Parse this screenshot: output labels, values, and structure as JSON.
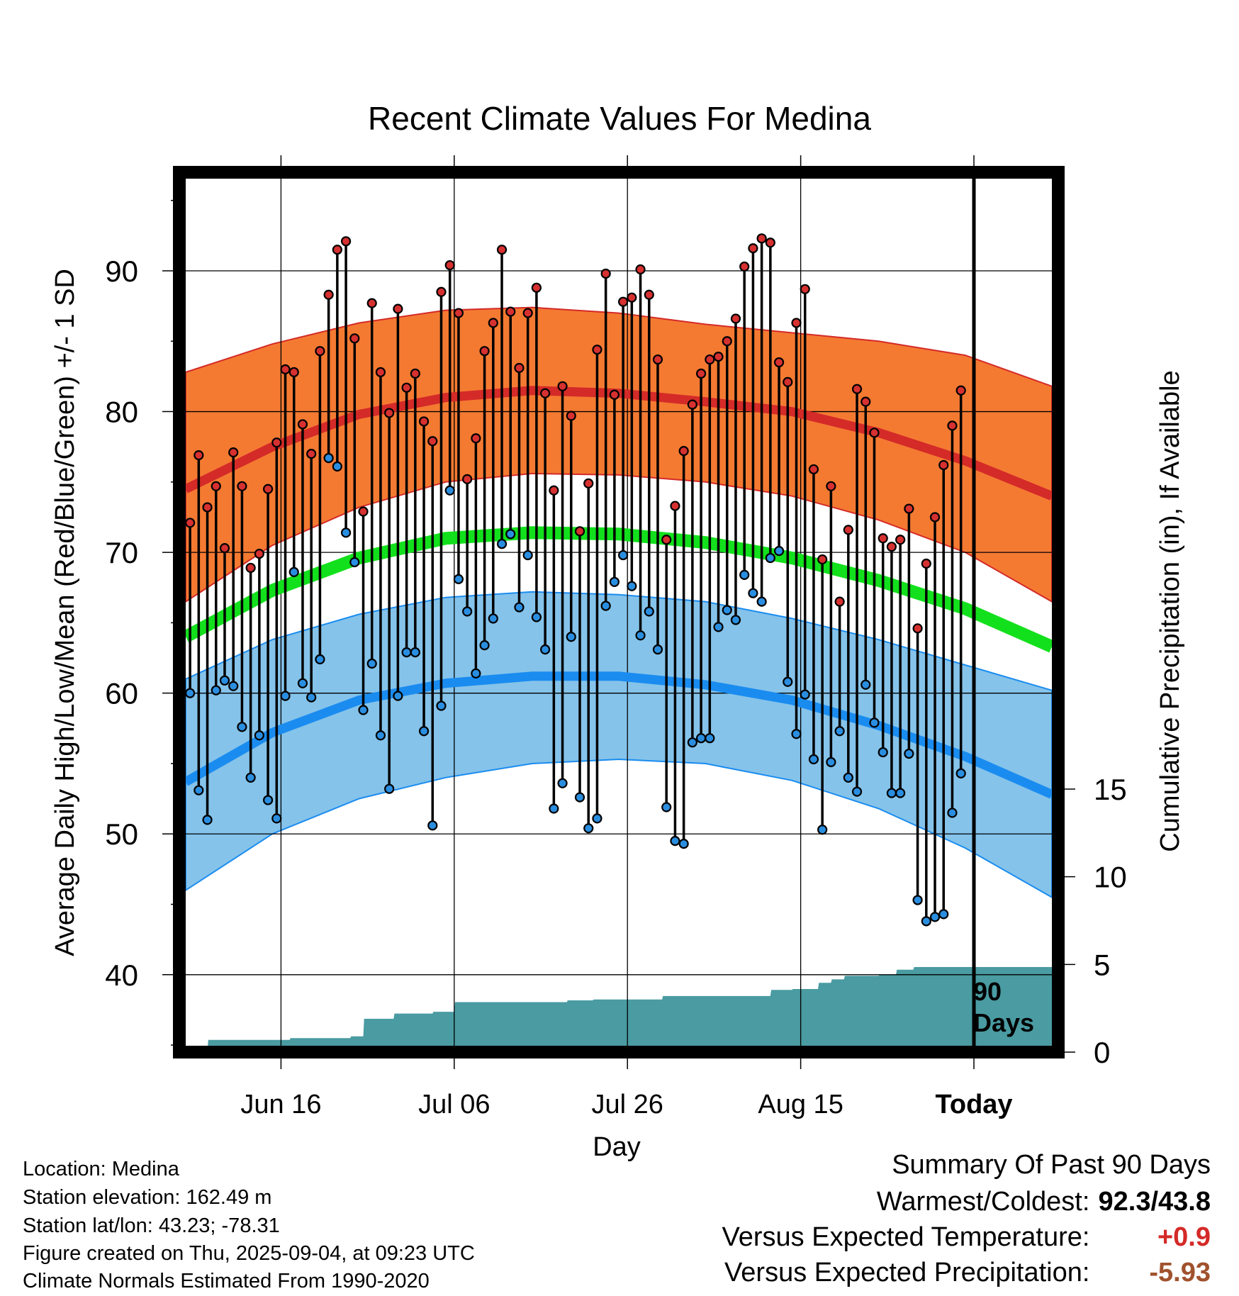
{
  "chart_data": {
    "type": "line",
    "title": "Recent Climate Values For Medina",
    "xlabel": "Day",
    "ylabel": "Average Daily High/Low/Mean (Red/Blue/Green) +/- 1 SD",
    "y2label": "Cumulative Precipitation (in), If Available",
    "ylim": [
      34.5,
      97
    ],
    "y2lim": [
      0,
      32
    ],
    "yticks": [
      "40",
      "50",
      "60",
      "70",
      "80",
      "90"
    ],
    "y2ticks": [
      "0",
      "5",
      "10",
      "15"
    ],
    "x_tick_labels": [
      "Jun 16",
      "Jul 06",
      "Jul 26",
      "Aug 15",
      "Today"
    ],
    "x_tick_days": [
      11,
      31,
      51,
      71,
      91
    ],
    "xlim": [
      0,
      100
    ],
    "period_label_line1": "90",
    "period_label_line2": "Days",
    "grid": true,
    "normals": {
      "days": [
        0,
        10,
        20,
        30,
        40,
        50,
        60,
        70,
        80,
        90,
        100
      ],
      "high_mean": [
        74.5,
        77.5,
        79.8,
        81.0,
        81.5,
        81.3,
        80.7,
        80.0,
        78.5,
        76.5,
        74.0
      ],
      "high_upper": [
        82.8,
        84.8,
        86.3,
        87.2,
        87.4,
        87.0,
        86.2,
        85.6,
        85.0,
        84.0,
        81.8
      ],
      "high_lower": [
        66.5,
        70.5,
        73.2,
        75.0,
        75.6,
        75.5,
        75.0,
        74.0,
        72.3,
        70.0,
        66.5
      ],
      "mean": [
        64.0,
        67.3,
        69.6,
        71.0,
        71.4,
        71.3,
        70.7,
        69.6,
        68.0,
        66.0,
        63.3
      ],
      "low_mean": [
        53.7,
        57.2,
        59.5,
        60.7,
        61.2,
        61.2,
        60.6,
        59.5,
        57.7,
        55.5,
        52.8
      ],
      "low_upper": [
        61.0,
        63.8,
        65.6,
        66.8,
        67.2,
        67.0,
        66.5,
        65.3,
        63.8,
        62.0,
        60.2
      ],
      "low_lower": [
        46.0,
        50.0,
        52.5,
        54.0,
        55.0,
        55.3,
        55.0,
        53.8,
        51.8,
        49.0,
        45.5
      ]
    },
    "daily": {
      "days": [
        0.5,
        1.5,
        2.5,
        3.5,
        4.5,
        5.5,
        6.5,
        7.5,
        8.5,
        9.5,
        10.5,
        11.5,
        12.5,
        13.5,
        14.5,
        15.5,
        16.5,
        17.5,
        18.5,
        19.5,
        20.5,
        21.5,
        22.5,
        23.5,
        24.5,
        25.5,
        26.5,
        27.5,
        28.5,
        29.5,
        30.5,
        31.5,
        32.5,
        33.5,
        34.5,
        35.5,
        36.5,
        37.5,
        38.5,
        39.5,
        40.5,
        41.5,
        42.5,
        43.5,
        44.5,
        45.5,
        46.5,
        47.5,
        48.5,
        49.5,
        50.5,
        51.5,
        52.5,
        53.5,
        54.5,
        55.5,
        56.5,
        57.5,
        58.5,
        59.5,
        60.5,
        61.5,
        62.5,
        63.5,
        64.5,
        65.5,
        66.5,
        67.5,
        68.5,
        69.5,
        70.5,
        71.5,
        72.5,
        73.5,
        74.5,
        75.5,
        76.5,
        77.5,
        78.5,
        79.5,
        80.5,
        81.5,
        82.5,
        83.5,
        84.5,
        85.5,
        86.5,
        87.5,
        88.5,
        89.5
      ],
      "high": [
        72.1,
        76.9,
        73.2,
        74.7,
        70.3,
        77.1,
        74.7,
        68.9,
        69.9,
        74.5,
        77.8,
        83.0,
        82.8,
        79.1,
        77.0,
        84.3,
        88.3,
        91.5,
        92.1,
        85.2,
        72.9,
        87.7,
        82.8,
        79.9,
        87.3,
        81.7,
        82.7,
        79.3,
        77.9,
        88.5,
        90.4,
        87.0,
        75.2,
        78.1,
        84.3,
        86.3,
        91.5,
        87.1,
        83.1,
        87.0,
        88.8,
        81.3,
        74.4,
        81.8,
        79.7,
        71.5,
        74.9,
        84.4,
        89.8,
        81.2,
        87.8,
        88.1,
        90.1,
        88.3,
        83.7,
        70.9,
        73.3,
        77.2,
        80.5,
        82.7,
        83.7,
        83.9,
        85.0,
        86.6,
        90.3,
        91.6,
        92.3,
        92.0,
        83.5,
        82.1,
        86.3,
        88.7,
        75.9,
        69.5,
        74.7,
        66.5,
        71.6,
        81.6,
        80.7,
        78.5,
        71.0,
        70.4,
        70.9,
        73.1,
        64.6,
        69.2,
        72.5,
        76.2,
        79.0,
        81.5
      ],
      "low": [
        60.0,
        53.1,
        51.0,
        60.2,
        60.9,
        60.5,
        57.6,
        54.0,
        57.0,
        52.4,
        51.1,
        59.8,
        68.6,
        60.7,
        59.7,
        62.4,
        76.7,
        76.1,
        71.4,
        69.3,
        58.8,
        62.1,
        57.0,
        53.2,
        59.8,
        62.9,
        62.9,
        57.3,
        50.6,
        59.1,
        74.4,
        68.1,
        65.8,
        61.4,
        63.4,
        65.3,
        70.6,
        71.3,
        66.1,
        69.8,
        65.4,
        63.1,
        51.8,
        53.6,
        64.0,
        52.6,
        50.4,
        51.1,
        66.2,
        67.9,
        69.8,
        67.6,
        64.1,
        65.8,
        63.1,
        51.9,
        49.5,
        49.3,
        56.5,
        56.8,
        56.8,
        64.7,
        65.9,
        65.2,
        68.4,
        67.1,
        66.5,
        69.6,
        70.1,
        60.8,
        57.1,
        59.9,
        55.3,
        50.3,
        55.1,
        57.3,
        54.0,
        53.0,
        60.6,
        57.9,
        55.8,
        52.9,
        52.9,
        55.7,
        45.3,
        43.8,
        44.1,
        44.3,
        51.5,
        54.3
      ]
    },
    "precip": {
      "days": [
        0,
        2.5,
        2.6,
        12,
        12.1,
        19,
        19.1,
        20.5,
        20.6,
        24,
        24.1,
        28.5,
        28.6,
        31,
        31.1,
        44,
        44.1,
        47,
        47.1,
        55,
        55.1,
        67.5,
        67.6,
        70,
        70.1,
        73,
        73.1,
        74.5,
        74.6,
        76,
        76.1,
        80,
        80.1,
        82,
        82.1,
        84,
        84.1,
        100
      ],
      "cum": [
        0,
        0,
        0.7,
        0.7,
        0.8,
        0.8,
        0.9,
        0.9,
        1.9,
        1.9,
        2.2,
        2.2,
        2.3,
        2.3,
        2.85,
        2.85,
        2.95,
        2.95,
        3.0,
        3.0,
        3.2,
        3.2,
        3.55,
        3.55,
        3.6,
        3.6,
        3.95,
        3.95,
        4.15,
        4.15,
        4.35,
        4.35,
        4.4,
        4.4,
        4.7,
        4.7,
        4.85,
        4.85
      ]
    },
    "colors": {
      "high_band": "#f47a32",
      "high_line": "#d42a28",
      "mean_line": "#13e01c",
      "low_band": "#85c3ea",
      "low_line": "#1a8cf0",
      "precip": "#4a9ba2",
      "high_marker": "#d63030",
      "low_marker": "#2a8ee0"
    }
  },
  "info": {
    "location": "Location: Medina",
    "elevation": "Station elevation: 162.49 m",
    "latlon": "Station lat/lon: 43.23; -78.31",
    "created": "Figure created on Thu, 2025-09-04, at 09:23 UTC",
    "normals": "Climate Normals Estimated From 1990-2020"
  },
  "summary": {
    "heading": "Summary Of Past 90 Days",
    "warm_label": "Warmest/Coldest:",
    "warm_value": "92.3/43.8",
    "temp_label": "Versus Expected Temperature:",
    "temp_value": "+0.9",
    "temp_color": "#d42a28",
    "precip_label": "Versus Expected Precipitation:",
    "precip_value": "-5.93",
    "precip_color": "#a0522d"
  }
}
